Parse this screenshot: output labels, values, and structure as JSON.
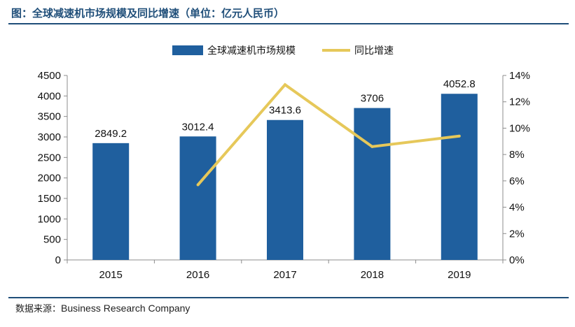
{
  "title": "图：全球减速机市场规模及同比增速（单位：亿元人民币）",
  "source_label": "数据来源：",
  "source_name": "Business Research Company",
  "colors": {
    "bar": "#1f5f9e",
    "line": "#e6c85a",
    "rule": "#1f4e79",
    "axis": "#8c8c8c"
  },
  "chart_data": {
    "type": "bar",
    "title": "图：全球减速机市场规模及同比增速（单位：亿元人民币）",
    "categories": [
      "2015",
      "2016",
      "2017",
      "2018",
      "2019"
    ],
    "series": [
      {
        "name": "全球减速机市场规模",
        "type": "bar",
        "axis": "left",
        "values": [
          2849.2,
          3012.4,
          3413.6,
          3706,
          4052.8
        ],
        "labels": [
          "2849.2",
          "3012.4",
          "3413.6",
          "3706",
          "4052.8"
        ]
      },
      {
        "name": "同比增速",
        "type": "line",
        "axis": "right",
        "values": [
          null,
          5.7,
          13.3,
          8.6,
          9.4
        ]
      }
    ],
    "y_left": {
      "min": 0,
      "max": 4500,
      "step": 500,
      "ticks": [
        "0",
        "500",
        "1000",
        "1500",
        "2000",
        "2500",
        "3000",
        "3500",
        "4000",
        "4500"
      ]
    },
    "y_right": {
      "min": 0,
      "max": 14,
      "step": 2,
      "ticks": [
        "0%",
        "2%",
        "4%",
        "6%",
        "8%",
        "10%",
        "12%",
        "14%"
      ]
    },
    "legend": "top-center",
    "grid": false
  }
}
